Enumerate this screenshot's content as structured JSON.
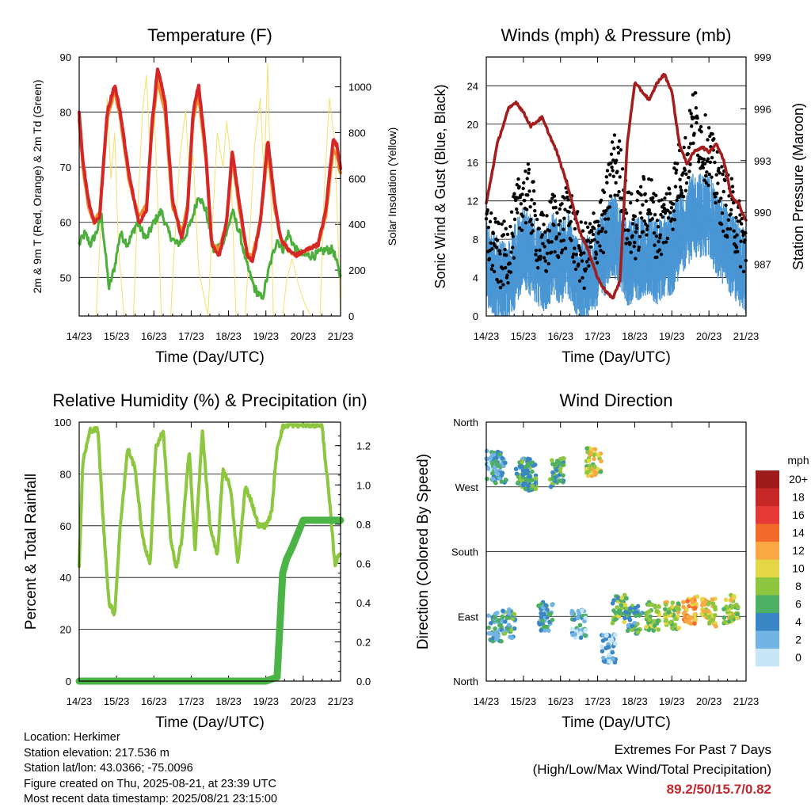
{
  "info": {
    "location": "Location: Herkimer",
    "elevation": "Station elevation: 217.536 m",
    "latlon": "Station lat/lon: 43.0366; -75.0096",
    "created": "Figure created on Thu, 2025-08-21, at 23:39 UTC",
    "recent": "Most recent data timestamp: 2025/08/21 23:15:00"
  },
  "extremes": {
    "title": "Extremes For Past 7 Days",
    "subtitle": "(High/Low/Max Wind/Total Precipitation)",
    "values": "89.2/50/15.7/0.82"
  },
  "chart_data": [
    {
      "type": "line",
      "title": "Temperature (F)",
      "xlabel": "Time (Day/UTC)",
      "ylabel": "2m & 9m T (Red, Orange) & 2m Td (Green)",
      "ylabel_right": "Solar Insolation (Yellow)",
      "x_ticks": [
        "14/23",
        "15/23",
        "16/23",
        "17/23",
        "18/23",
        "19/23",
        "20/23",
        "21/23"
      ],
      "xlim": [
        0,
        7
      ],
      "ylim": [
        43,
        90
      ],
      "yticks": [
        50,
        60,
        70,
        80,
        90
      ],
      "ylim_right": [
        0,
        1130
      ],
      "yticks_right": [
        0,
        200,
        400,
        600,
        800,
        1000
      ],
      "colors": {
        "t2m": "#d62728",
        "t9m": "#f28a2b",
        "td": "#4caf3c",
        "solar": "#f5e06a"
      },
      "series": [
        {
          "name": "2m T",
          "x": [
            0,
            0.1,
            0.25,
            0.4,
            0.55,
            0.75,
            0.95,
            1.1,
            1.35,
            1.6,
            1.8,
            1.95,
            2.1,
            2.3,
            2.5,
            2.75,
            2.9,
            3.05,
            3.2,
            3.4,
            3.55,
            3.75,
            3.95,
            4.1,
            4.3,
            4.5,
            4.65,
            4.85,
            5.05,
            5.25,
            5.4,
            5.6,
            5.8,
            6.1,
            6.4,
            6.6,
            6.8,
            6.9,
            7.0
          ],
          "values": [
            80,
            71,
            64,
            60,
            61,
            80,
            85,
            80,
            68,
            60,
            62,
            78,
            88,
            82,
            64,
            57,
            62,
            80,
            85,
            72,
            56,
            54,
            60,
            73,
            63,
            54,
            53,
            60,
            75,
            63,
            57,
            55,
            54,
            55,
            56,
            62,
            75,
            74,
            70
          ]
        },
        {
          "name": "9m T",
          "x": [
            0,
            0.1,
            0.25,
            0.4,
            0.55,
            0.75,
            0.95,
            1.1,
            1.35,
            1.6,
            1.8,
            1.95,
            2.1,
            2.3,
            2.5,
            2.75,
            2.9,
            3.05,
            3.2,
            3.4,
            3.55,
            3.75,
            3.95,
            4.1,
            4.3,
            4.5,
            4.65,
            4.85,
            5.05,
            5.25,
            5.4,
            5.6,
            5.8,
            6.1,
            6.4,
            6.6,
            6.8,
            6.9,
            7.0
          ],
          "values": [
            79,
            70,
            63,
            60,
            62,
            79,
            84,
            79,
            67,
            61,
            63,
            77,
            86,
            80,
            63,
            58,
            63,
            79,
            83,
            71,
            56,
            55,
            60,
            72,
            62,
            54,
            54,
            60,
            73,
            62,
            57,
            55,
            54,
            55,
            56,
            61,
            73,
            72,
            69
          ]
        },
        {
          "name": "2m Td",
          "x": [
            0,
            0.15,
            0.3,
            0.45,
            0.6,
            0.8,
            0.95,
            1.1,
            1.3,
            1.55,
            1.8,
            2.0,
            2.2,
            2.4,
            2.6,
            2.8,
            3.0,
            3.2,
            3.4,
            3.6,
            3.8,
            3.95,
            4.1,
            4.3,
            4.5,
            4.7,
            4.9,
            5.1,
            5.3,
            5.45,
            5.6,
            5.8,
            6.0,
            6.3,
            6.6,
            6.8,
            7.0
          ],
          "values": [
            56,
            58,
            56,
            58,
            61,
            48,
            52,
            58,
            56,
            60,
            57,
            60,
            62,
            58,
            56,
            57,
            60,
            65,
            62,
            55,
            56,
            58,
            62,
            58,
            52,
            48,
            46,
            52,
            57,
            55,
            58,
            55,
            54,
            54,
            55,
            55,
            50
          ]
        },
        {
          "name": "Solar",
          "x": [
            0,
            0.45,
            0.55,
            0.65,
            0.75,
            0.85,
            0.95,
            1.05,
            1.2,
            1.45,
            1.55,
            1.7,
            1.8,
            1.9,
            2.0,
            2.1,
            2.2,
            2.45,
            2.55,
            2.7,
            2.85,
            2.95,
            3.05,
            3.2,
            3.45,
            3.55,
            3.7,
            3.85,
            3.95,
            4.05,
            4.2,
            4.45,
            4.55,
            4.7,
            4.85,
            4.95,
            5.05,
            5.15,
            5.2,
            5.45,
            5.55,
            5.7,
            5.85,
            5.95,
            6.05,
            6.2,
            6.45,
            6.55,
            6.7,
            6.85,
            7.0
          ],
          "values": [
            0,
            0,
            300,
            700,
            950,
            600,
            800,
            300,
            0,
            0,
            400,
            900,
            1050,
            700,
            950,
            500,
            0,
            0,
            300,
            700,
            900,
            600,
            700,
            200,
            0,
            350,
            800,
            650,
            850,
            700,
            0,
            0,
            300,
            750,
            950,
            600,
            1100,
            400,
            0,
            0,
            150,
            250,
            150,
            100,
            50,
            0,
            0,
            500,
            950,
            750,
            0
          ]
        }
      ]
    },
    {
      "type": "line",
      "title": "Winds (mph) & Pressure (mb)",
      "xlabel": "Time (Day/UTC)",
      "ylabel": "Sonic Wind & Gust (Blue, Black)",
      "ylabel_right": "Station Pressure (Maroon)",
      "x_ticks": [
        "14/23",
        "15/23",
        "16/23",
        "17/23",
        "18/23",
        "19/23",
        "20/23",
        "21/23"
      ],
      "xlim": [
        0,
        7
      ],
      "ylim": [
        0,
        27
      ],
      "yticks": [
        0,
        4,
        8,
        12,
        16,
        20,
        24
      ],
      "ylim_right": [
        984,
        999
      ],
      "yticks_right": [
        987,
        990,
        993,
        996,
        999
      ],
      "colors": {
        "wind": "#4a96d4",
        "gust": "#000000",
        "pressure": "#a31d1d"
      },
      "series": [
        {
          "name": "Pressure",
          "x": [
            0,
            0.3,
            0.6,
            0.8,
            1.0,
            1.2,
            1.5,
            1.7,
            1.9,
            2.2,
            2.5,
            2.8,
            3.0,
            3.2,
            3.4,
            3.6,
            3.8,
            4.0,
            4.2,
            4.4,
            4.6,
            4.8,
            5.0,
            5.2,
            5.4,
            5.6,
            5.8,
            6.0,
            6.2,
            6.4,
            6.6,
            6.8,
            7.0
          ],
          "values": [
            990.5,
            994.0,
            996.0,
            996.4,
            995.8,
            995.0,
            995.5,
            994.5,
            993.5,
            991.5,
            989.0,
            987.5,
            986.2,
            985.5,
            985.0,
            986.0,
            994.0,
            997.5,
            997.0,
            996.5,
            997.5,
            998.0,
            997.0,
            994.0,
            992.8,
            993.5,
            993.8,
            993.5,
            994.0,
            993.0,
            991.0,
            990.5,
            989.5
          ]
        },
        {
          "name": "Wind",
          "x": [
            0,
            0.2,
            0.4,
            0.6,
            0.8,
            1.0,
            1.2,
            1.4,
            1.6,
            1.8,
            2.0,
            2.2,
            2.4,
            2.6,
            2.8,
            3.0,
            3.2,
            3.4,
            3.6,
            3.8,
            4.0,
            4.2,
            4.4,
            4.6,
            4.8,
            5.0,
            5.2,
            5.4,
            5.6,
            5.8,
            6.0,
            6.2,
            6.4,
            6.6,
            6.8,
            7.0
          ],
          "values": [
            5,
            4,
            3,
            3,
            5,
            7,
            6,
            5,
            4,
            6,
            5,
            6,
            4,
            3,
            4,
            5,
            6,
            8,
            7,
            5,
            5,
            6,
            6,
            5,
            6,
            6,
            8,
            9,
            10,
            10,
            10,
            8,
            7,
            6,
            5,
            4
          ]
        },
        {
          "name": "Gust",
          "x": [
            0,
            0.2,
            0.4,
            0.6,
            0.8,
            1.0,
            1.2,
            1.4,
            1.6,
            1.8,
            2.0,
            2.2,
            2.4,
            2.6,
            2.8,
            3.0,
            3.2,
            3.4,
            3.6,
            3.8,
            4.0,
            4.2,
            4.4,
            4.6,
            4.8,
            5.0,
            5.2,
            5.4,
            5.6,
            5.8,
            6.0,
            6.2,
            6.4,
            6.6,
            6.8,
            7.0
          ],
          "values": [
            9,
            7,
            6,
            7,
            10,
            13,
            12,
            8,
            7,
            10,
            9,
            11,
            8,
            6,
            7,
            9,
            10,
            16,
            15,
            10,
            9,
            11,
            12,
            9,
            10,
            12,
            15,
            16,
            21,
            18,
            17,
            14,
            12,
            11,
            9,
            7
          ]
        }
      ]
    },
    {
      "type": "line",
      "title": "Relative Humidity (%) & Precipitation (in)",
      "xlabel": "Time (Day/UTC)",
      "ylabel": "Percent & Total Rainfall",
      "x_ticks": [
        "14/23",
        "15/23",
        "16/23",
        "17/23",
        "18/23",
        "19/23",
        "20/23",
        "21/23"
      ],
      "xlim": [
        0,
        7
      ],
      "ylim": [
        0,
        100
      ],
      "yticks": [
        0,
        20,
        40,
        60,
        80,
        100
      ],
      "ylim_right": [
        0,
        1.32
      ],
      "yticks_right": [
        0.0,
        0.2,
        0.4,
        0.6,
        0.8,
        1.0,
        1.2
      ],
      "colors": {
        "rh": "#8dc63f",
        "precip": "#4bb447"
      },
      "series": [
        {
          "name": "RH",
          "x": [
            0,
            0.1,
            0.3,
            0.5,
            0.65,
            0.8,
            0.95,
            1.1,
            1.3,
            1.5,
            1.7,
            1.9,
            2.05,
            2.25,
            2.45,
            2.6,
            2.75,
            2.95,
            3.1,
            3.3,
            3.5,
            3.7,
            3.85,
            4.05,
            4.25,
            4.45,
            4.6,
            4.8,
            5.0,
            5.15,
            5.3,
            5.45,
            5.6,
            5.8,
            6.0,
            6.3,
            6.5,
            6.7,
            6.85,
            7.0
          ],
          "values": [
            45,
            85,
            97,
            97,
            60,
            30,
            26,
            60,
            90,
            82,
            55,
            45,
            90,
            97,
            55,
            43,
            55,
            90,
            50,
            97,
            60,
            48,
            82,
            75,
            45,
            75,
            70,
            60,
            60,
            65,
            90,
            98,
            99,
            99,
            99,
            99,
            99,
            70,
            45,
            50
          ]
        },
        {
          "name": "Precip",
          "x": [
            0,
            1,
            2,
            3,
            4,
            5,
            5.3,
            5.38,
            5.45,
            5.55,
            5.7,
            5.85,
            6.0,
            6.5,
            7.0
          ],
          "values": [
            0,
            0,
            0,
            0,
            0,
            0,
            0.02,
            0.3,
            0.55,
            0.62,
            0.68,
            0.75,
            0.82,
            0.82,
            0.82
          ]
        }
      ]
    },
    {
      "type": "scatter",
      "title": "Wind Direction",
      "xlabel": "Time (Day/UTC)",
      "ylabel": "Direction (Colored By Speed)",
      "x_ticks": [
        "14/23",
        "15/23",
        "16/23",
        "17/23",
        "18/23",
        "19/23",
        "20/23",
        "21/23"
      ],
      "xlim": [
        0,
        7
      ],
      "y_categories": [
        "North",
        "West",
        "South",
        "East",
        "North"
      ],
      "ylim": [
        0,
        360
      ],
      "legend_title": "mph",
      "legend_labels": [
        "20+",
        "18",
        "16",
        "14",
        "12",
        "10",
        "8",
        "6",
        "4",
        "2",
        "0"
      ],
      "legend_colors": [
        "#9e1b1b",
        "#c62828",
        "#e53935",
        "#f26b2b",
        "#f9a844",
        "#e4d644",
        "#8ec63f",
        "#4caf63",
        "#3a86c4",
        "#72b4e4",
        "#c7e6f8"
      ],
      "legend_placement": "right",
      "clusters": [
        {
          "x": 0.2,
          "dir": 300,
          "speed": 3
        },
        {
          "x": 0.35,
          "dir": 295,
          "speed": 4
        },
        {
          "x": 0.25,
          "dir": 75,
          "speed": 4
        },
        {
          "x": 0.6,
          "dir": 80,
          "speed": 5
        },
        {
          "x": 1.0,
          "dir": 290,
          "speed": 5
        },
        {
          "x": 1.15,
          "dir": 285,
          "speed": 6
        },
        {
          "x": 1.6,
          "dir": 90,
          "speed": 4
        },
        {
          "x": 1.9,
          "dir": 290,
          "speed": 6
        },
        {
          "x": 2.5,
          "dir": 80,
          "speed": 3
        },
        {
          "x": 2.9,
          "dir": 305,
          "speed": 9
        },
        {
          "x": 3.3,
          "dir": 45,
          "speed": 2
        },
        {
          "x": 3.6,
          "dir": 100,
          "speed": 7
        },
        {
          "x": 4.0,
          "dir": 85,
          "speed": 5
        },
        {
          "x": 4.5,
          "dir": 90,
          "speed": 8
        },
        {
          "x": 5.0,
          "dir": 92,
          "speed": 9
        },
        {
          "x": 5.5,
          "dir": 98,
          "speed": 12
        },
        {
          "x": 6.0,
          "dir": 95,
          "speed": 10
        },
        {
          "x": 6.6,
          "dir": 100,
          "speed": 9
        }
      ]
    }
  ]
}
